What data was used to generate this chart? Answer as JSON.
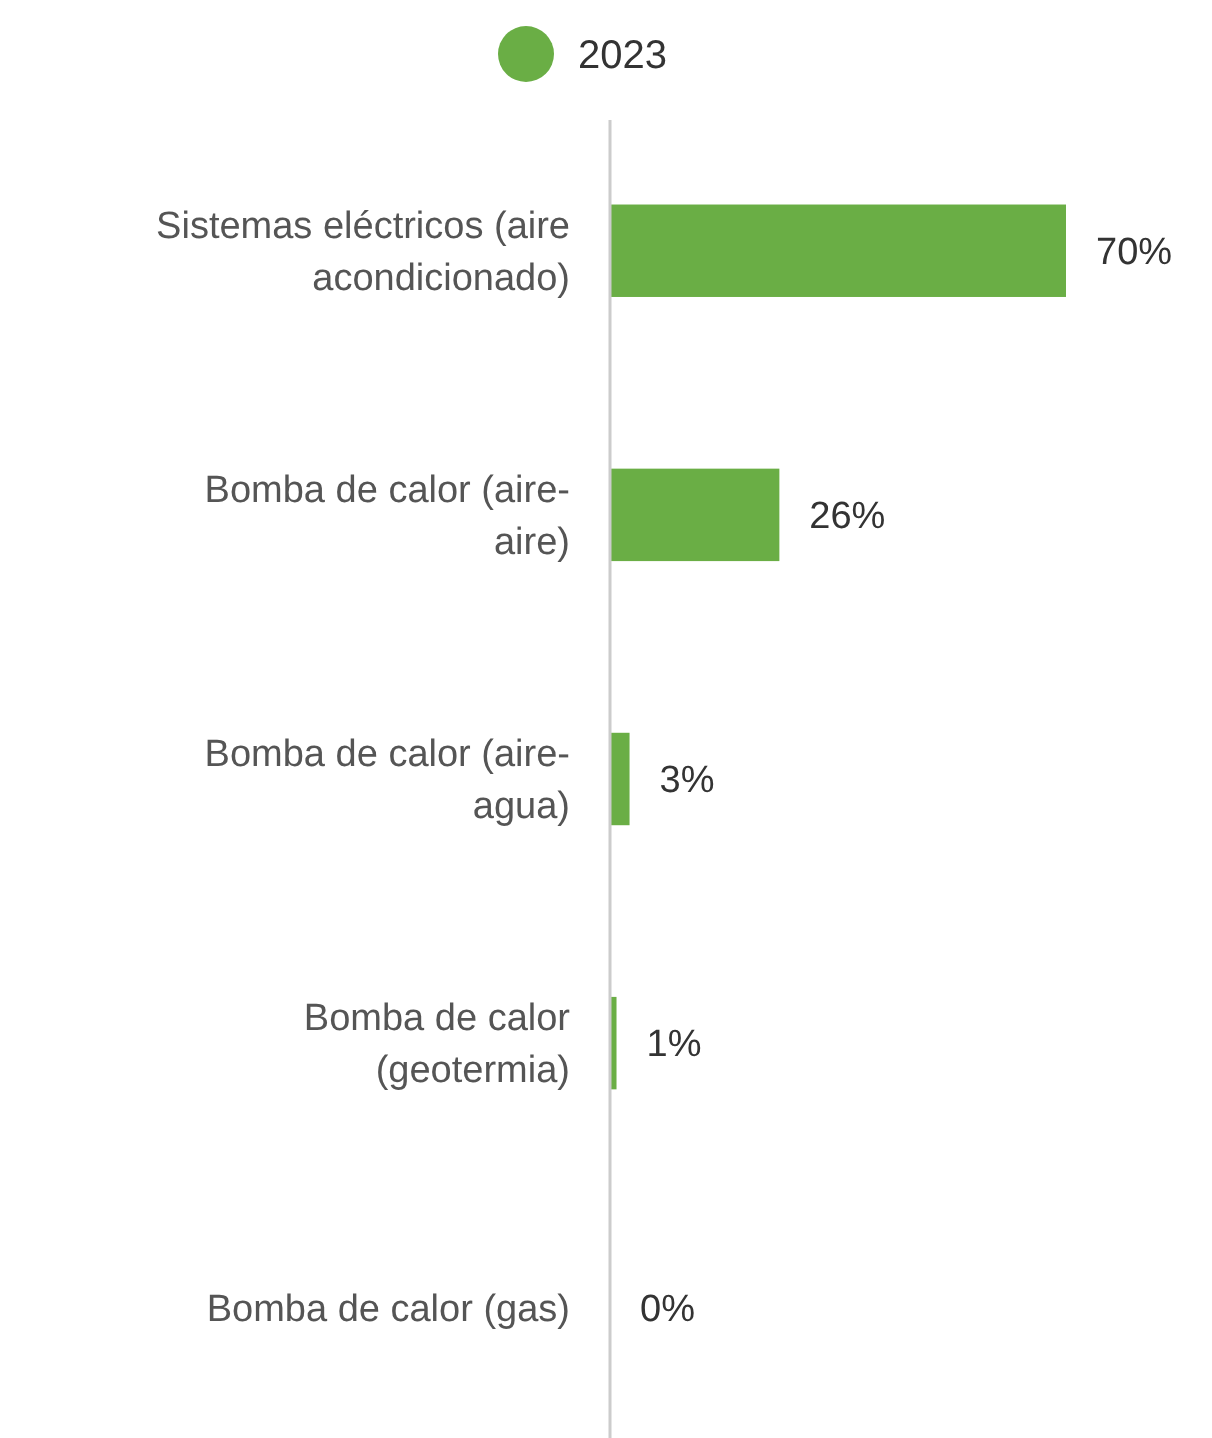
{
  "chart_data": {
    "type": "bar",
    "orientation": "horizontal",
    "categories": [
      "Sistemas eléctricos (aire acondicionado)",
      "Bomba de calor (aire-aire)",
      "Bomba de calor (aire-agua)",
      "Bomba de calor (geotermia)",
      "Bomba de calor (gas)"
    ],
    "series": [
      {
        "name": "2023",
        "color": "#6aae45",
        "values": [
          70,
          26,
          3,
          1,
          0
        ],
        "value_labels": [
          "70%",
          "26%",
          "3%",
          "1%",
          "0%"
        ]
      }
    ],
    "legend": "top"
  }
}
